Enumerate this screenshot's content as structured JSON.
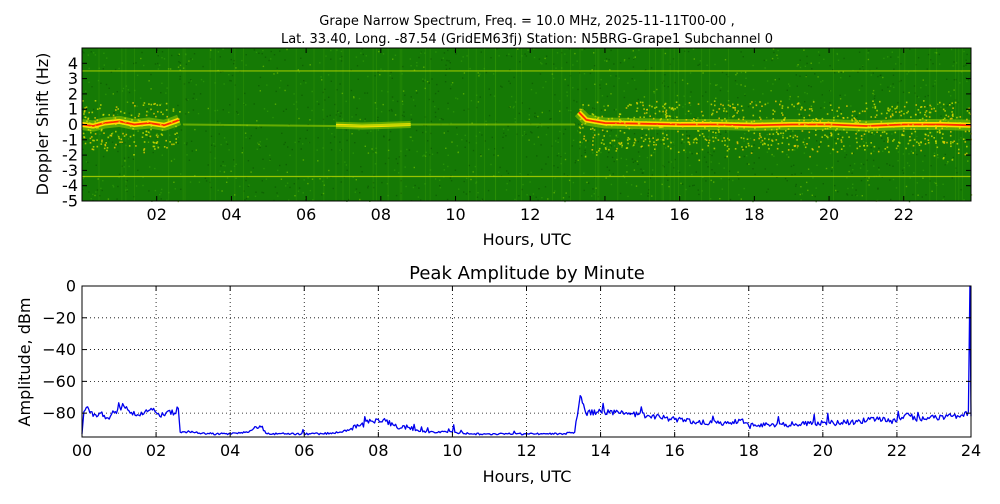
{
  "title": {
    "line1": "Grape Narrow Spectrum, Freq. = 10.0 MHz, 2025-11-11T00-00 ,",
    "line2": "Lat.  33.40, Long. -87.54 (GridEM63fj) Station: N5BRG-Grape1 Subchannel 0"
  },
  "chart_data": [
    {
      "type": "heatmap",
      "title": "Grape Narrow Spectrum, Freq. = 10.0 MHz, 2025-11-11T00-00 , Lat.  33.40, Long. -87.54 (GridEM63fj) Station: N5BRG-Grape1 Subchannel 0",
      "xlabel": "Hours, UTC",
      "ylabel": "Doppler Shift (Hz)",
      "xlim": [
        0,
        23.8
      ],
      "ylim": [
        -5,
        5
      ],
      "x_ticks": [
        "02",
        "04",
        "06",
        "08",
        "10",
        "12",
        "14",
        "16",
        "18",
        "20",
        "22"
      ],
      "x_tick_values": [
        2,
        4,
        6,
        8,
        10,
        12,
        14,
        16,
        18,
        20,
        22
      ],
      "y_ticks": [
        "4",
        "3",
        "2",
        "1",
        "0",
        "-1",
        "-2",
        "-3",
        "-4",
        "-5"
      ],
      "y_tick_values": [
        4,
        3,
        2,
        1,
        0,
        -1,
        -2,
        -3,
        -4,
        -5
      ],
      "colors": {
        "background": "#157a05",
        "mid": "#9ccf00",
        "peak": "#ff2a00",
        "high": "#ffe000"
      },
      "horizontal_lines_hz": [
        3.5,
        -3.4
      ],
      "trace_segments": [
        {
          "name": "early",
          "points": [
            [
              0.0,
              0.0
            ],
            [
              0.3,
              -0.1
            ],
            [
              0.6,
              0.1
            ],
            [
              1.0,
              0.2
            ],
            [
              1.4,
              0.0
            ],
            [
              1.8,
              0.1
            ],
            [
              2.2,
              -0.05
            ],
            [
              2.5,
              0.2
            ],
            [
              2.6,
              0.3
            ]
          ],
          "intensity": "strong"
        },
        {
          "name": "midday-weak",
          "points": [
            [
              6.8,
              -0.05
            ],
            [
              7.5,
              -0.1
            ],
            [
              8.2,
              -0.05
            ],
            [
              8.8,
              0.0
            ]
          ],
          "intensity": "medium"
        },
        {
          "name": "faint",
          "points": [
            [
              2.7,
              0.0
            ],
            [
              6.8,
              -0.1
            ],
            [
              8.8,
              0.0
            ],
            [
              13.2,
              0.0
            ]
          ],
          "intensity": "faint"
        },
        {
          "name": "afternoon",
          "points": [
            [
              13.3,
              0.8
            ],
            [
              13.5,
              0.3
            ],
            [
              14.0,
              0.1
            ],
            [
              15.0,
              0.05
            ],
            [
              16.0,
              0.0
            ],
            [
              17.0,
              0.0
            ],
            [
              18.0,
              -0.05
            ],
            [
              19.0,
              0.0
            ],
            [
              20.0,
              0.0
            ],
            [
              21.0,
              -0.1
            ],
            [
              22.0,
              0.0
            ],
            [
              23.0,
              0.0
            ],
            [
              23.8,
              -0.05
            ]
          ],
          "intensity": "strong"
        }
      ]
    },
    {
      "type": "line",
      "title": "Peak Amplitude by Minute",
      "xlabel": "Hours, UTC",
      "ylabel": "Amplitude, dBm",
      "xlim": [
        0,
        24
      ],
      "ylim": [
        -95,
        0
      ],
      "grid": true,
      "line_color": "#0000ee",
      "x_ticks": [
        "00",
        "02",
        "04",
        "06",
        "08",
        "10",
        "12",
        "14",
        "16",
        "18",
        "20",
        "22",
        "24"
      ],
      "x_tick_values": [
        0,
        2,
        4,
        6,
        8,
        10,
        12,
        14,
        16,
        18,
        20,
        22,
        24
      ],
      "y_ticks": [
        "0",
        "−20",
        "−40",
        "−60",
        "−80"
      ],
      "y_tick_values": [
        0,
        -20,
        -40,
        -60,
        -80
      ],
      "series": [
        {
          "name": "Peak Amplitude",
          "x": [
            0.0,
            0.05,
            0.15,
            0.3,
            0.5,
            0.7,
            0.9,
            1.05,
            1.1,
            1.3,
            1.5,
            1.7,
            1.9,
            2.1,
            2.3,
            2.5,
            2.6,
            2.65,
            3.0,
            3.5,
            4.0,
            4.5,
            4.8,
            5.0,
            5.5,
            6.0,
            6.5,
            7.0,
            7.5,
            7.8,
            8.0,
            8.2,
            8.5,
            8.7,
            9.0,
            9.5,
            10.0,
            10.5,
            11.0,
            11.5,
            12.0,
            12.5,
            13.0,
            13.3,
            13.45,
            13.6,
            14.0,
            14.5,
            15.0,
            15.5,
            16.0,
            16.5,
            17.0,
            17.5,
            17.8,
            18.0,
            18.5,
            19.0,
            19.5,
            20.0,
            20.5,
            21.0,
            21.5,
            22.0,
            22.3,
            22.5,
            23.0,
            23.5,
            23.8,
            23.93,
            23.97,
            24.0
          ],
          "values": [
            -93,
            -79,
            -76,
            -82,
            -80,
            -83,
            -79,
            -78,
            -74,
            -80,
            -81,
            -79,
            -78,
            -82,
            -79,
            -80,
            -77,
            -92,
            -92,
            -93,
            -93,
            -92,
            -88,
            -93,
            -93,
            -93,
            -93,
            -92,
            -88,
            -85,
            -84,
            -85,
            -89,
            -88,
            -91,
            -92,
            -92,
            -93,
            -93,
            -93,
            -93,
            -93,
            -93,
            -92,
            -69,
            -80,
            -79,
            -80,
            -81,
            -82,
            -84,
            -85,
            -86,
            -86,
            -84,
            -88,
            -87,
            -87,
            -87,
            -86,
            -86,
            -85,
            -84,
            -85,
            -80,
            -84,
            -83,
            -82,
            -82,
            -79,
            0,
            -82
          ]
        }
      ]
    }
  ]
}
